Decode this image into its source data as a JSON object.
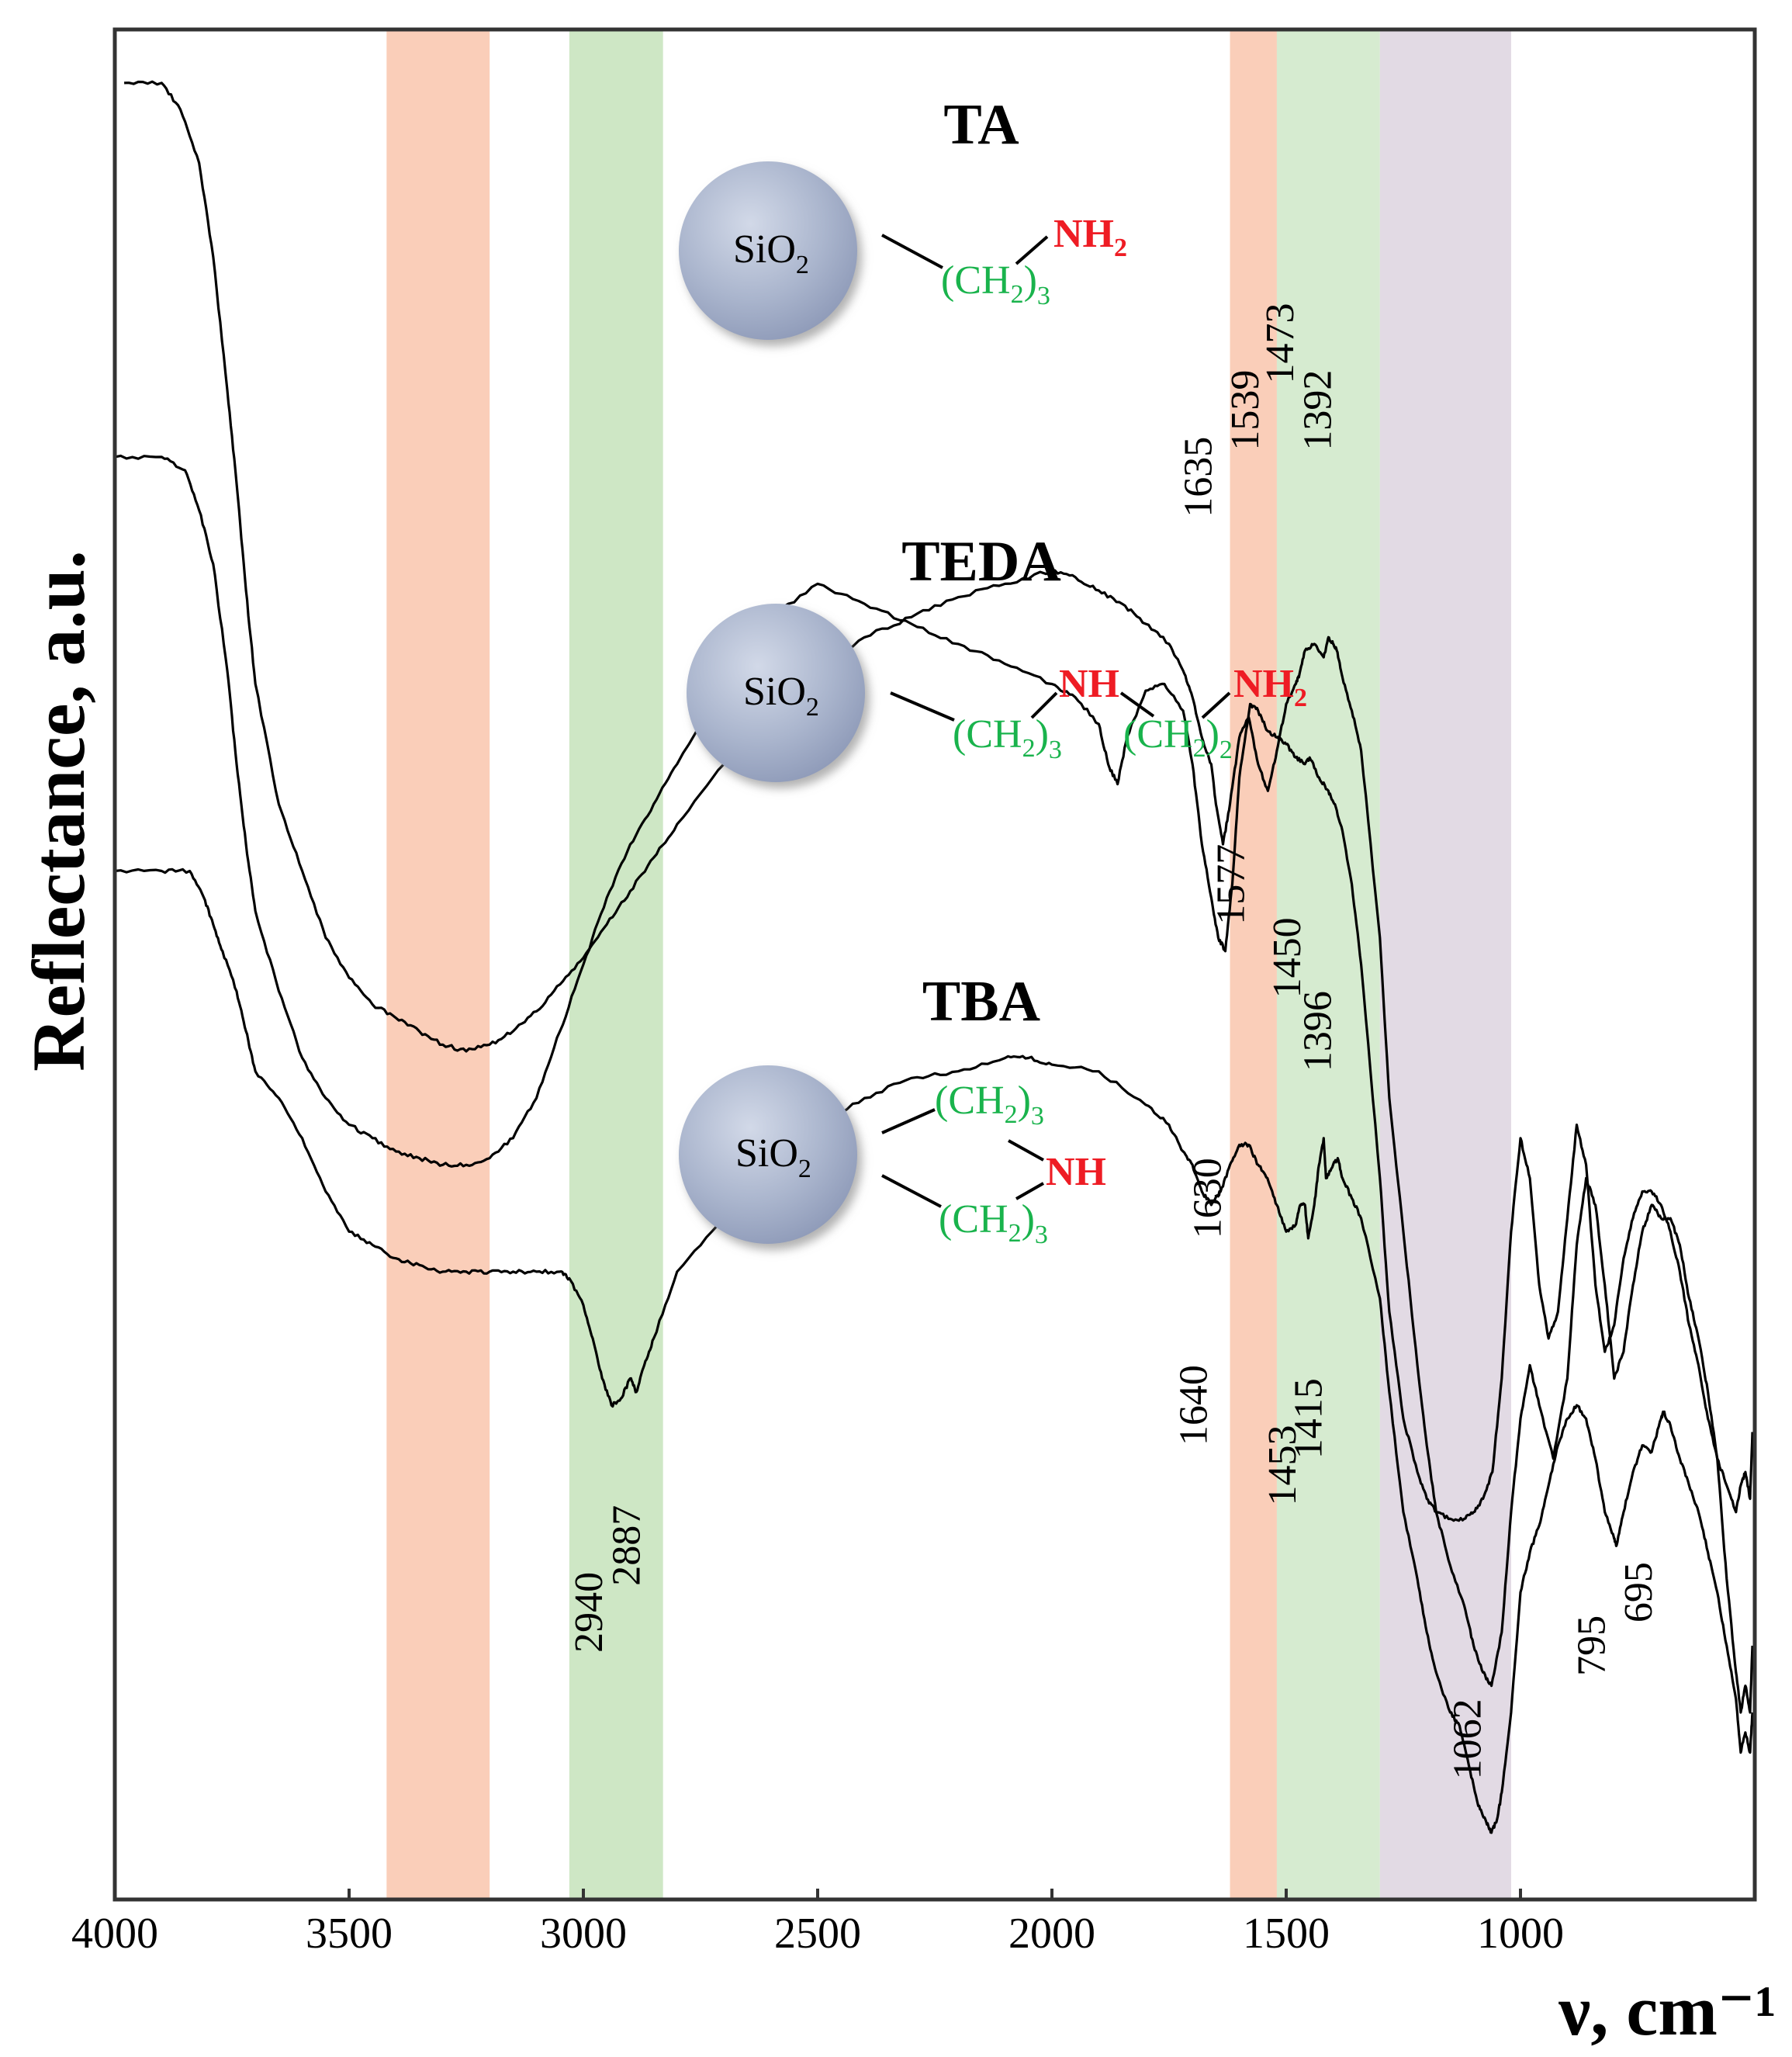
{
  "chart_data": {
    "type": "line",
    "title": "",
    "xlabel": "ν, cm⁻¹",
    "ylabel": "Reflectance, a.u.",
    "xlim": [
      4000,
      500
    ],
    "x_reversed": true,
    "xticks": [
      4000,
      3500,
      3000,
      2500,
      2000,
      1500,
      1000
    ],
    "grid": false,
    "bands": [
      {
        "from": 3420,
        "to": 3200,
        "color": "#f9c6ad"
      },
      {
        "from": 3030,
        "to": 2830,
        "color": "#c6e3bb"
      },
      {
        "from": 1620,
        "to": 1520,
        "color": "#f9c6ad"
      },
      {
        "from": 1520,
        "to": 1300,
        "color": "#cfe8c8"
      },
      {
        "from": 1300,
        "to": 1020,
        "color": "#ddd3df"
      }
    ],
    "series": [
      {
        "name": "TA",
        "x": [
          3980,
          3900,
          3860,
          3820,
          3790,
          3760,
          3740,
          3720,
          3700,
          3650,
          3600,
          3550,
          3500,
          3450,
          3400,
          3350,
          3300,
          3250,
          3200,
          3150,
          3100,
          3050,
          3000,
          2950,
          2900,
          2850,
          2800,
          2700,
          2600,
          2500,
          2400,
          2300,
          2200,
          2100,
          2000,
          1950,
          1900,
          1850,
          1800,
          1750,
          1720,
          1700,
          1680,
          1660,
          1650,
          1635,
          1620,
          1600,
          1580,
          1560,
          1539,
          1520,
          1500,
          1480,
          1473,
          1460,
          1440,
          1420,
          1410,
          1400,
          1392,
          1380,
          1360,
          1340,
          1300,
          1280,
          1250,
          1220,
          1200,
          1180,
          1150,
          1120,
          1100,
          1080,
          1062,
          1040,
          1020,
          1000,
          980,
          960,
          930,
          900,
          880,
          860,
          840,
          820,
          800,
          780,
          760,
          740,
          720,
          700,
          680,
          660,
          640,
          620,
          600,
          580,
          560,
          540,
          530,
          520,
          510,
          505
        ],
        "values": [
          9.4,
          9.4,
          9.2,
          8.8,
          8.1,
          7.1,
          6.4,
          5.6,
          4.9,
          4.0,
          3.5,
          3.0,
          2.7,
          2.5,
          2.4,
          2.3,
          2.2,
          2.15,
          2.2,
          2.3,
          2.45,
          2.65,
          2.85,
          3.1,
          3.35,
          3.6,
          3.85,
          4.3,
          4.7,
          5.0,
          5.25,
          5.4,
          5.55,
          5.65,
          5.75,
          5.7,
          5.6,
          5.5,
          5.35,
          5.2,
          5.0,
          4.8,
          4.5,
          4.3,
          4.0,
          3.7,
          4.0,
          4.5,
          4.65,
          4.3,
          4.1,
          4.4,
          4.75,
          4.9,
          4.95,
          5.15,
          5.2,
          5.1,
          5.25,
          5.2,
          5.15,
          4.95,
          4.7,
          4.4,
          3.0,
          1.8,
          0.8,
          -0.2,
          -0.8,
          -1.3,
          -1.7,
          -2.0,
          -2.3,
          -2.5,
          -2.6,
          -2.2,
          -1.3,
          -0.6,
          -0.2,
          -0.5,
          -0.9,
          -0.3,
          0.7,
          1.2,
          1.0,
          0.4,
          -0.3,
          -0.1,
          0.4,
          0.8,
          1.0,
          0.9,
          0.9,
          0.7,
          0.3,
          0.0,
          -0.4,
          -0.9,
          -1.8,
          -2.5,
          -2.8,
          -2.6,
          -2.8,
          -2.3
        ]
      },
      {
        "name": "TEDA",
        "x": [
          4000,
          3900,
          3850,
          3820,
          3790,
          3760,
          3740,
          3720,
          3700,
          3650,
          3600,
          3550,
          3500,
          3450,
          3400,
          3350,
          3300,
          3250,
          3200,
          3150,
          3100,
          3050,
          3000,
          2950,
          2900,
          2850,
          2800,
          2700,
          2600,
          2500,
          2400,
          2300,
          2200,
          2100,
          2000,
          1950,
          1900,
          1880,
          1860,
          1840,
          1800,
          1760,
          1720,
          1700,
          1680,
          1660,
          1645,
          1630,
          1615,
          1600,
          1577,
          1560,
          1540,
          1520,
          1500,
          1480,
          1460,
          1450,
          1430,
          1410,
          1396,
          1380,
          1360,
          1340,
          1300,
          1280,
          1250,
          1220,
          1200,
          1180,
          1150,
          1120,
          1100,
          1080,
          1060,
          1040,
          1020,
          1000,
          980,
          960,
          940,
          920,
          900,
          880,
          860,
          840,
          820,
          800,
          780,
          760,
          740,
          720,
          700,
          680,
          660,
          640,
          620,
          600,
          580,
          560,
          540,
          530,
          520,
          510,
          505
        ],
        "values": [
          6.6,
          6.6,
          6.5,
          6.2,
          5.8,
          5.0,
          4.3,
          3.7,
          3.2,
          2.6,
          2.1,
          1.8,
          1.6,
          1.5,
          1.4,
          1.35,
          1.3,
          1.3,
          1.35,
          1.5,
          1.8,
          2.3,
          2.8,
          3.3,
          3.7,
          4.0,
          4.3,
          4.9,
          5.4,
          5.65,
          5.5,
          5.35,
          5.2,
          5.05,
          4.9,
          4.8,
          4.6,
          4.3,
          4.15,
          4.5,
          4.85,
          4.9,
          4.7,
          4.3,
          3.7,
          3.3,
          3.0,
          2.9,
          3.4,
          4.2,
          4.75,
          4.7,
          4.55,
          4.5,
          4.45,
          4.35,
          4.3,
          4.35,
          4.2,
          4.1,
          4.0,
          3.8,
          3.4,
          2.8,
          1.2,
          0.2,
          -0.6,
          -1.0,
          -1.2,
          -1.3,
          -1.35,
          -1.35,
          -1.3,
          -1.2,
          -1.0,
          -0.3,
          0.8,
          1.5,
          1.2,
          0.4,
          0.0,
          0.2,
          0.9,
          1.6,
          1.3,
          0.4,
          -0.1,
          0.1,
          0.6,
          0.9,
          1.1,
          1.1,
          1.0,
          0.8,
          0.5,
          0.1,
          -0.2,
          -0.6,
          -0.9,
          -1.1,
          -1.3,
          -1.1,
          -1.0,
          -1.2,
          -0.7
        ]
      },
      {
        "name": "TBA",
        "x": [
          4000,
          3900,
          3840,
          3810,
          3790,
          3770,
          3740,
          3720,
          3700,
          3650,
          3600,
          3550,
          3500,
          3450,
          3400,
          3350,
          3300,
          3250,
          3200,
          3150,
          3100,
          3050,
          3030,
          3000,
          2980,
          2960,
          2940,
          2920,
          2900,
          2887,
          2870,
          2850,
          2800,
          2700,
          2600,
          2500,
          2400,
          2300,
          2200,
          2100,
          2050,
          2000,
          1900,
          1800,
          1750,
          1720,
          1700,
          1680,
          1660,
          1640,
          1620,
          1600,
          1580,
          1560,
          1540,
          1520,
          1500,
          1480,
          1470,
          1460,
          1453,
          1440,
          1430,
          1420,
          1415,
          1400,
          1390,
          1380,
          1360,
          1340,
          1300,
          1280,
          1250,
          1220,
          1200,
          1180,
          1150,
          1130,
          1110,
          1090,
          1075,
          1062,
          1050,
          1040,
          1020,
          1000,
          980,
          960,
          940,
          920,
          900,
          880,
          860,
          840,
          820,
          800,
          795,
          780,
          760,
          740,
          720,
          700,
          695,
          680,
          660,
          640,
          620,
          600,
          580,
          560,
          540,
          530,
          520,
          510,
          505
        ],
        "values": [
          3.5,
          3.5,
          3.5,
          3.3,
          3.1,
          2.9,
          2.6,
          2.3,
          2.0,
          1.8,
          1.5,
          1.1,
          0.8,
          0.7,
          0.6,
          0.55,
          0.5,
          0.5,
          0.5,
          0.5,
          0.5,
          0.5,
          0.45,
          0.25,
          0.0,
          -0.3,
          -0.5,
          -0.45,
          -0.3,
          -0.4,
          -0.2,
          0.0,
          0.5,
          0.9,
          1.3,
          1.6,
          1.8,
          1.95,
          2.0,
          2.1,
          2.1,
          2.05,
          2.0,
          1.75,
          1.6,
          1.4,
          1.3,
          1.1,
          1.0,
          1.1,
          1.3,
          1.45,
          1.45,
          1.3,
          1.2,
          1.0,
          0.8,
          0.85,
          1.0,
          1.0,
          0.75,
          1.0,
          1.3,
          1.5,
          1.2,
          1.3,
          1.35,
          1.2,
          1.05,
          0.9,
          0.3,
          -0.4,
          -1.3,
          -1.8,
          -2.2,
          -2.5,
          -2.8,
          -2.9,
          -3.2,
          -3.5,
          -3.6,
          -3.7,
          -3.6,
          -3.4,
          -2.8,
          -1.9,
          -1.6,
          -1.4,
          -1.1,
          -0.8,
          -0.6,
          -0.5,
          -0.6,
          -0.9,
          -1.3,
          -1.5,
          -1.55,
          -1.3,
          -1.0,
          -0.8,
          -0.85,
          -0.6,
          -0.55,
          -0.65,
          -0.9,
          -1.1,
          -1.3,
          -1.6,
          -1.9,
          -2.3,
          -2.7,
          -3.1,
          -2.95,
          -3.1,
          -2.8
        ]
      }
    ],
    "peak_labels": [
      {
        "text": "1635",
        "x": 1660,
        "y": 6.45
      },
      {
        "text": "1539",
        "x": 1560,
        "y": 6.95
      },
      {
        "text": "1473",
        "x": 1485,
        "y": 7.45
      },
      {
        "text": "1392",
        "x": 1405,
        "y": 6.95
      },
      {
        "text": "1577",
        "x": 1590,
        "y": 3.4
      },
      {
        "text": "1450",
        "x": 1470,
        "y": 2.85
      },
      {
        "text": "1396",
        "x": 1405,
        "y": 2.3
      },
      {
        "text": "1630",
        "x": 1640,
        "y": 1.05
      },
      {
        "text": "1640",
        "x": 1670,
        "y": -0.5
      },
      {
        "text": "1453",
        "x": 1480,
        "y": -0.95
      },
      {
        "text": "1415",
        "x": 1425,
        "y": -0.6
      },
      {
        "text": "2940",
        "x": 2960,
        "y": -2.05
      },
      {
        "text": "2887",
        "x": 2880,
        "y": -1.55
      },
      {
        "text": "1062",
        "x": 1085,
        "y": -3.0
      },
      {
        "text": "795",
        "x": 820,
        "y": -2.3
      },
      {
        "text": "695",
        "x": 720,
        "y": -1.9
      }
    ]
  },
  "labels": {
    "ta": "TA",
    "teda": "TEDA",
    "tba": "TBA",
    "sio": "SiO",
    "two": "2",
    "three": "3",
    "ch_open": "(CH",
    "ch_close": ")",
    "nh": "NH",
    "nh2_base": "NH"
  }
}
